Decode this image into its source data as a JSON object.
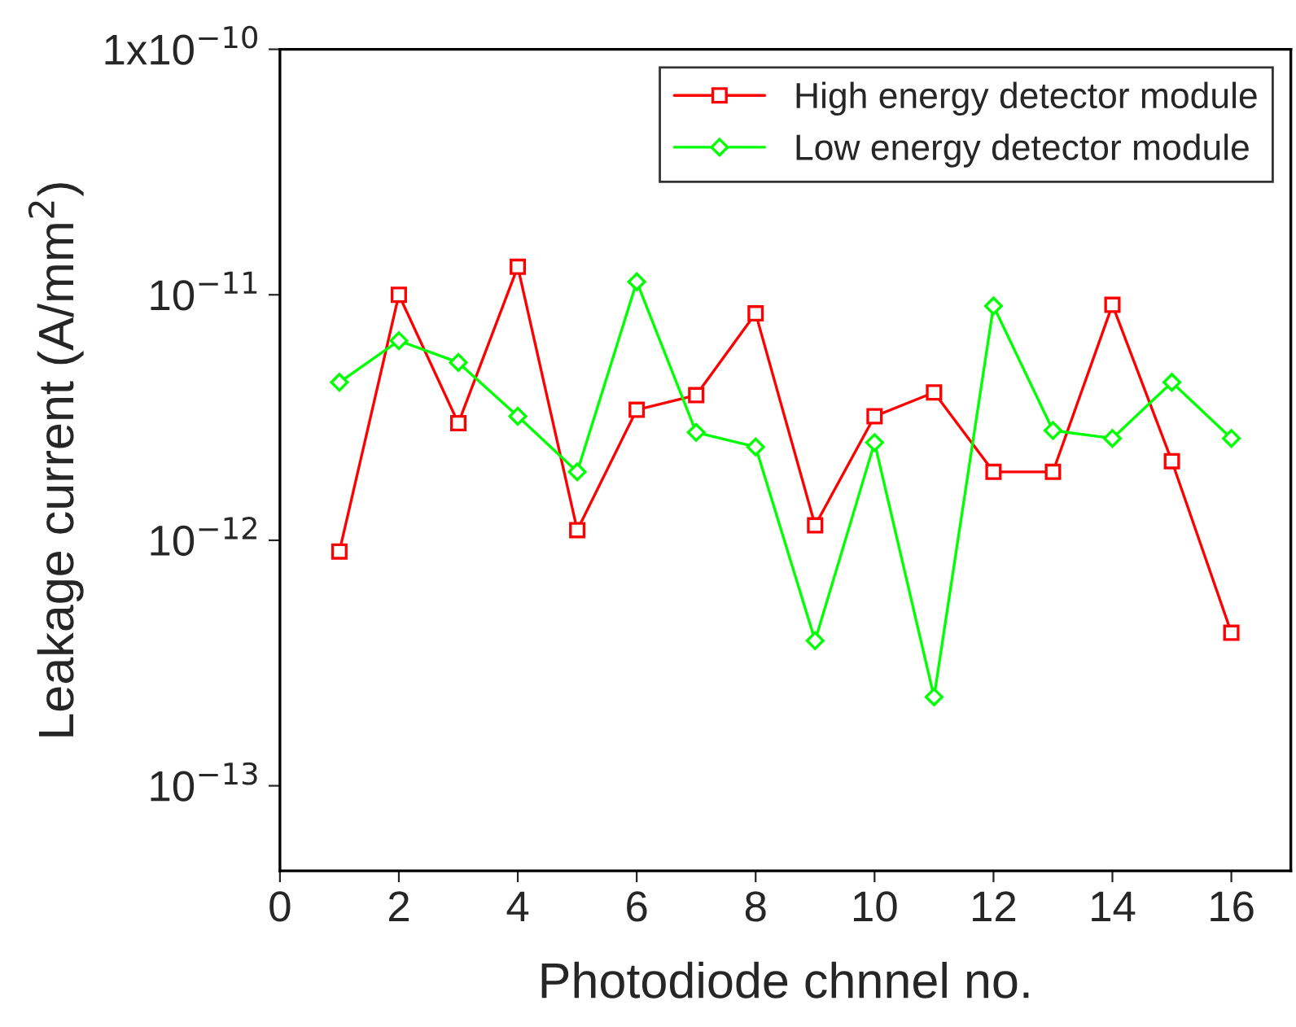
{
  "chart_data": {
    "type": "line",
    "xlabel": "Photodiode chnnel no.",
    "ylabel": "Leakage current (A/mm$^{2}$)",
    "x": [
      1,
      2,
      3,
      4,
      5,
      6,
      7,
      8,
      9,
      10,
      11,
      12,
      13,
      14,
      15,
      16
    ],
    "series": [
      {
        "name": "High energy detector module",
        "color": "#ff0000",
        "marker": "square",
        "values": [
          9e-13,
          1e-11,
          3e-12,
          1.3e-11,
          1.1e-12,
          3.4e-12,
          3.9e-12,
          8.4e-12,
          1.15e-12,
          3.2e-12,
          4e-12,
          1.9e-12,
          1.9e-12,
          9.1e-12,
          2.1e-12,
          4.2e-13
        ]
      },
      {
        "name": "Low energy detector module",
        "color": "#00ff00",
        "marker": "diamond",
        "values": [
          4.4e-12,
          6.5e-12,
          5.3e-12,
          3.2e-12,
          1.9e-12,
          1.13e-11,
          2.75e-12,
          2.4e-12,
          3.9e-13,
          2.5e-12,
          2.3e-13,
          9e-12,
          2.8e-12,
          2.6e-12,
          4.4e-12,
          2.6e-12
        ]
      }
    ],
    "log": "y",
    "xlim": [
      0,
      17
    ],
    "xticks": [
      0,
      2,
      4,
      6,
      8,
      10,
      12,
      14,
      16
    ],
    "ylim": [
      4.5e-14,
      1e-10
    ],
    "yticks": [
      {
        "value": 1e-13,
        "label": "10$^{−13}$"
      },
      {
        "value": 1e-12,
        "label": "10$^{−12}$"
      },
      {
        "value": 1e-11,
        "label": "10$^{−11}$"
      },
      {
        "value": 1e-10,
        "label": "1x10$^{−10}$"
      }
    ],
    "grid": false,
    "legend": "top right"
  }
}
